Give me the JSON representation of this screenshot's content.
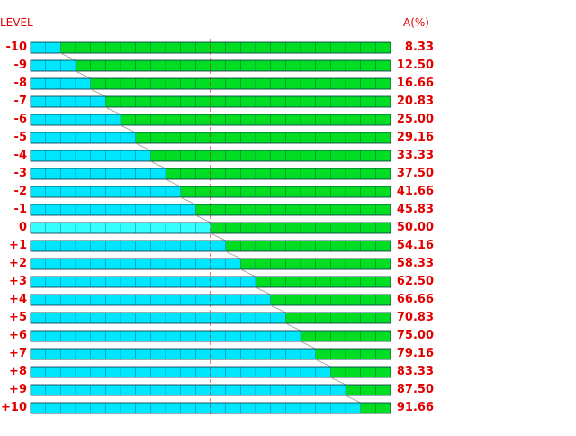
{
  "header": {
    "level_label": "LEVEL",
    "a_label": "A(%)"
  },
  "colors": {
    "cyan": "#00e6ff",
    "green": "#00dd22",
    "highlight_cyan": "#33ffff",
    "label_red": "#e00000",
    "center_line": "#cc0000",
    "cell_border": "#003344",
    "slant": "#999999"
  },
  "cells_per_bar": 24,
  "chart_data": {
    "type": "bar",
    "title": "",
    "xlabel": "",
    "ylabel": "",
    "series": [
      {
        "name": "A(%)",
        "values": [
          8.33,
          12.5,
          16.66,
          20.83,
          25.0,
          29.16,
          33.33,
          37.5,
          41.66,
          45.83,
          50.0,
          54.16,
          58.33,
          62.5,
          66.66,
          70.83,
          75.0,
          79.16,
          83.33,
          87.5,
          91.66
        ]
      }
    ],
    "rows": [
      {
        "level": "-10",
        "a": "8.33"
      },
      {
        "level": "-9",
        "a": "12.50"
      },
      {
        "level": "-8",
        "a": "16.66"
      },
      {
        "level": "-7",
        "a": "20.83"
      },
      {
        "level": "-6",
        "a": "25.00"
      },
      {
        "level": "-5",
        "a": "29.16"
      },
      {
        "level": "-4",
        "a": "33.33"
      },
      {
        "level": "-3",
        "a": "37.50"
      },
      {
        "level": "-2",
        "a": "41.66"
      },
      {
        "level": "-1",
        "a": "45.83"
      },
      {
        "level": "0",
        "a": "50.00"
      },
      {
        "level": "+1",
        "a": "54.16"
      },
      {
        "level": "+2",
        "a": "58.33"
      },
      {
        "level": "+3",
        "a": "62.50"
      },
      {
        "level": "+4",
        "a": "66.66"
      },
      {
        "level": "+5",
        "a": "70.83"
      },
      {
        "level": "+6",
        "a": "75.00"
      },
      {
        "level": "+7",
        "a": "79.16"
      },
      {
        "level": "+8",
        "a": "83.33"
      },
      {
        "level": "+9",
        "a": "87.50"
      },
      {
        "level": "+10",
        "a": "91.66"
      }
    ],
    "highlighted_level": "0",
    "center_line_percent": 50,
    "grid": false
  }
}
